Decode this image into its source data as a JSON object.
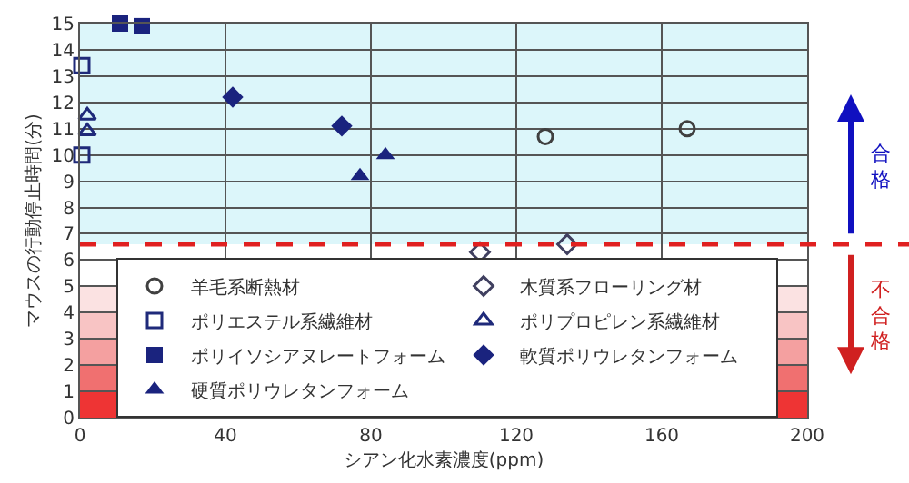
{
  "chart_data": {
    "type": "scatter",
    "xlabel": "シアン化水素濃度(ppm)",
    "ylabel": "マウスの行動停止時間(分)",
    "xlim": [
      0,
      200
    ],
    "xticks": [
      0,
      40,
      80,
      120,
      160,
      200
    ],
    "ylim": [
      0,
      15
    ],
    "yticks": [
      0,
      1,
      2,
      3,
      4,
      5,
      6,
      7,
      8,
      9,
      10,
      11,
      12,
      13,
      14,
      15
    ],
    "grid": true,
    "legend": "bottom",
    "series": [
      {
        "name": "羊毛系断熱材",
        "color": "#404040",
        "marker": "circle-open",
        "x": [
          128,
          167
        ],
        "values": [
          10.7,
          11.0
        ]
      },
      {
        "name": "木質系フローリング材",
        "color": "#404060",
        "marker": "diamond-open",
        "x": [
          110,
          134
        ],
        "values": [
          6.3,
          6.6
        ]
      },
      {
        "name": "ポリエステル系繊維材",
        "color": "#1f2a7a",
        "marker": "square-open",
        "x": [
          0.5,
          0.5
        ],
        "values": [
          13.4,
          10.0
        ]
      },
      {
        "name": "ポリプロピレン系繊維材",
        "color": "#1f2a7a",
        "marker": "triangle-open",
        "x": [
          2,
          2
        ],
        "values": [
          11.5,
          10.9
        ]
      },
      {
        "name": "ポリイソシアヌレートフォーム",
        "color": "#1a237e",
        "marker": "square",
        "x": [
          11,
          17
        ],
        "values": [
          15.0,
          14.9
        ]
      },
      {
        "name": "軟質ポリウレタンフォーム",
        "color": "#1a237e",
        "marker": "diamond",
        "x": [
          42,
          72
        ],
        "values": [
          12.2,
          11.1
        ]
      },
      {
        "name": "硬質ポリウレタンフォーム",
        "color": "#1a237e",
        "marker": "triangle",
        "x": [
          77,
          84
        ],
        "values": [
          9.2,
          10.0
        ]
      }
    ],
    "ref_lines": [
      {
        "axis": "y",
        "value": 6.6,
        "color": "#e02020",
        "line_style": "dashed"
      }
    ],
    "bands": [
      {
        "axis": "y",
        "from": 6.6,
        "to": 15,
        "color": "#dcf6fa"
      },
      {
        "axis": "y",
        "from": 4,
        "to": 5,
        "color": "#fbe2e2"
      },
      {
        "axis": "y",
        "from": 3,
        "to": 4,
        "color": "#f8c4c4"
      },
      {
        "axis": "y",
        "from": 2,
        "to": 3,
        "color": "#f4a0a0"
      },
      {
        "axis": "y",
        "from": 1,
        "to": 2,
        "color": "#f07070"
      },
      {
        "axis": "y",
        "from": 0,
        "to": 1,
        "color": "#ee3434"
      }
    ],
    "annotations": [
      "合格",
      "不合格"
    ]
  }
}
